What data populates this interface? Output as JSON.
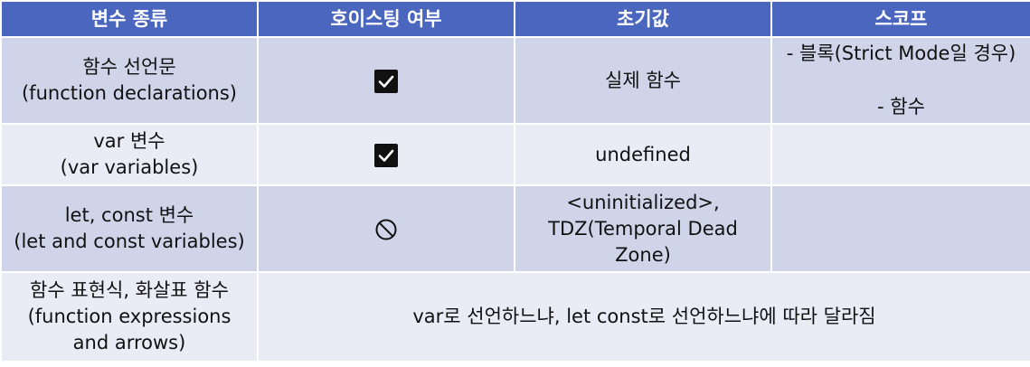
{
  "headers": [
    "변수 종류",
    "호이스팅 여부",
    "초기값",
    "스코프"
  ],
  "rows": [
    {
      "kind": [
        "함수 선언문",
        "(function declarations)"
      ],
      "hoisting_icon": "check-icon",
      "initial": [
        "실제 함수"
      ],
      "scope": [
        "- 블록(Strict Mode일 경우)",
        "- 함수"
      ]
    },
    {
      "kind": [
        "var 변수",
        "(var variables)"
      ],
      "hoisting_icon": "check-icon",
      "initial": [
        "undefined"
      ],
      "scope": []
    },
    {
      "kind": [
        "let, const 변수",
        "(let and const variables)"
      ],
      "hoisting_icon": "prohibited-icon",
      "initial": [
        "<uninitialized>,",
        "TDZ(Temporal Dead",
        "Zone)"
      ],
      "scope": []
    },
    {
      "kind": [
        "함수 표현식, 화살표 함수",
        "(function expressions",
        "and arrows)"
      ],
      "merged_note": "var로 선언하느냐, let const로 선언하느냐에 따라 달라짐"
    }
  ],
  "colors": {
    "header_bg": "#4b66bf",
    "row_dark": "#cfd4e9",
    "row_light": "#e9ebf5"
  }
}
